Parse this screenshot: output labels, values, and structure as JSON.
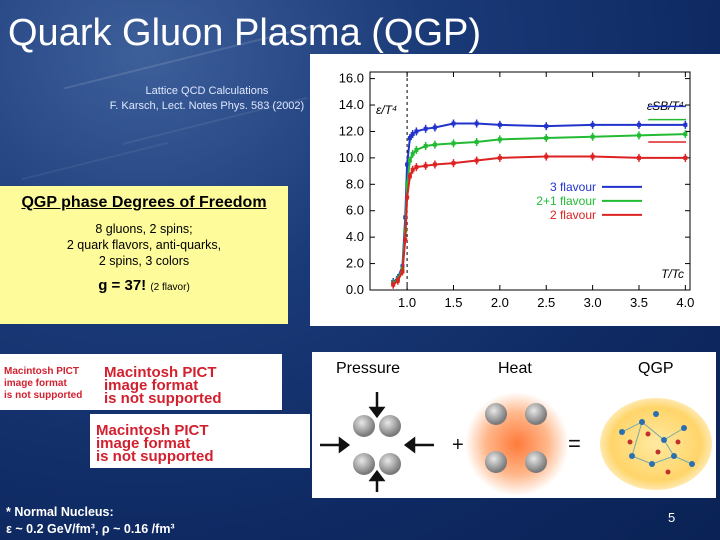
{
  "slide": {
    "title": "Quark Gluon Plasma (QGP)",
    "reference_line1": "Lattice QCD Calculations",
    "reference_line2": "F. Karsch, Lect. Notes Phys. 583 (2002)",
    "dof_heading": "QGP phase Degrees of Freedom",
    "dof_line1": "8 gluons, 2 spins;",
    "dof_line2": "2 quark flavors, anti-quarks,",
    "dof_line3": "2 spins, 3 colors",
    "g_value": "g = 37!",
    "g_note": "(2 flavor)",
    "pict_line1a": "Macintosh PICT",
    "pict_line1b": "image format",
    "pict_line1c": "is not supported",
    "pict_line2a": "Macintosh PICT",
    "pict_line2b": "image format",
    "pict_line2c": "is not supported",
    "panel_pressure": "Pressure",
    "panel_heat": "Heat",
    "panel_qgp": "QGP",
    "nucleus_line1": "* Normal Nucleus:",
    "nucleus_line2": "ε ~ 0.2 GeV/fm³, ρ ~ 0.16 /fm³",
    "page_number": "5"
  },
  "chart_data": {
    "type": "line",
    "ylabel": "ε/T⁴",
    "xlabel": "T/Tc",
    "annotation": "εSB/T⁴",
    "xlim": [
      0.6,
      4.05
    ],
    "ylim": [
      0,
      16.5
    ],
    "x_ticks": [
      "1.0",
      "1.5",
      "2.0",
      "2.5",
      "3.0",
      "3.5",
      "4.0"
    ],
    "y_ticks": [
      "0.0",
      "2.0",
      "4.0",
      "6.0",
      "8.0",
      "10.0",
      "12.0",
      "14.0",
      "16.0"
    ],
    "series": [
      {
        "name": "3 flavour",
        "color": "#2233cc",
        "x": [
          0.85,
          0.9,
          0.95,
          0.98,
          1.0,
          1.03,
          1.06,
          1.1,
          1.2,
          1.3,
          1.5,
          1.75,
          2.0,
          2.5,
          3.0,
          3.5,
          4.0
        ],
        "y": [
          0.6,
          0.9,
          1.8,
          5.5,
          9.5,
          11.5,
          11.8,
          12.0,
          12.2,
          12.3,
          12.6,
          12.6,
          12.5,
          12.4,
          12.5,
          12.5,
          12.5
        ],
        "sb": 13.9
      },
      {
        "name": "2+1 flavour",
        "color": "#22bb33",
        "x": [
          0.85,
          0.9,
          0.95,
          0.98,
          1.0,
          1.03,
          1.06,
          1.1,
          1.2,
          1.3,
          1.5,
          1.75,
          2.0,
          2.5,
          3.0,
          3.5,
          4.0
        ],
        "y": [
          0.5,
          0.8,
          1.6,
          4.5,
          8.0,
          9.8,
          10.3,
          10.6,
          10.9,
          11.0,
          11.1,
          11.2,
          11.4,
          11.5,
          11.6,
          11.7,
          11.8
        ],
        "sb": 12.9
      },
      {
        "name": "2 flavour",
        "color": "#dd2222",
        "x": [
          0.85,
          0.9,
          0.95,
          0.98,
          1.0,
          1.03,
          1.06,
          1.1,
          1.2,
          1.3,
          1.5,
          1.75,
          2.0,
          2.5,
          3.0,
          3.5,
          4.0
        ],
        "y": [
          0.4,
          0.7,
          1.4,
          3.8,
          7.0,
          8.6,
          9.1,
          9.3,
          9.4,
          9.5,
          9.6,
          9.8,
          10.0,
          10.1,
          10.1,
          10.0,
          10.0
        ],
        "sb": 11.2
      }
    ]
  }
}
